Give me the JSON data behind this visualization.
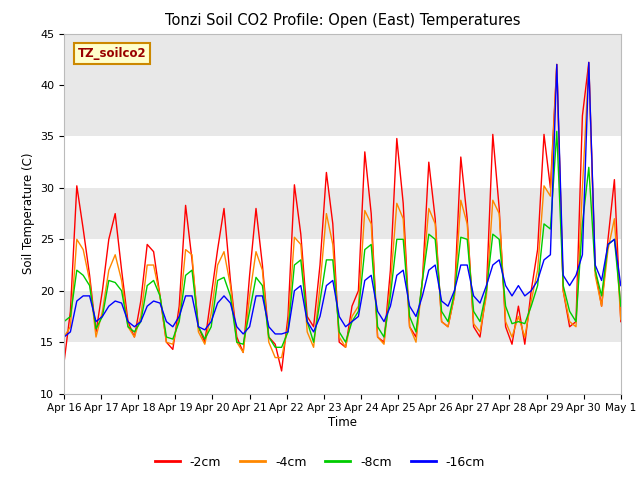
{
  "title": "Tonzi Soil CO2 Profile: Open (East) Temperatures",
  "ylabel": "Soil Temperature (C)",
  "xlabel": "Time",
  "watermark": "TZ_soilco2",
  "ylim": [
    10,
    45
  ],
  "xtick_labels": [
    "Apr 16",
    "Apr 17",
    "Apr 18",
    "Apr 19",
    "Apr 20",
    "Apr 21",
    "Apr 22",
    "Apr 23",
    "Apr 24",
    "Apr 25",
    "Apr 26",
    "Apr 27",
    "Apr 28",
    "Apr 29",
    "Apr 30",
    "May 1"
  ],
  "legend_labels": [
    "-2cm",
    "-4cm",
    "-8cm",
    "-16cm"
  ],
  "legend_colors": [
    "#ff0000",
    "#ff8800",
    "#00cc00",
    "#0000ff"
  ],
  "background_color": "#ffffff",
  "plot_bg_color": "#ffffff",
  "band_color": "#e8e8e8",
  "series": {
    "2cm": [
      13.0,
      18.0,
      30.2,
      26.0,
      21.5,
      16.0,
      20.0,
      25.0,
      27.5,
      22.0,
      17.0,
      15.5,
      19.0,
      24.5,
      23.8,
      19.5,
      15.0,
      14.3,
      18.5,
      28.3,
      23.0,
      16.5,
      15.0,
      19.5,
      24.0,
      28.0,
      21.0,
      15.5,
      14.0,
      21.5,
      28.0,
      22.5,
      15.5,
      14.8,
      12.2,
      17.5,
      30.3,
      25.5,
      17.5,
      16.5,
      22.5,
      31.5,
      26.5,
      15.0,
      14.5,
      18.5,
      20.0,
      33.5,
      27.5,
      15.5,
      15.0,
      22.0,
      34.8,
      28.5,
      16.5,
      15.5,
      21.0,
      32.5,
      27.0,
      17.0,
      16.5,
      19.5,
      33.0,
      27.0,
      16.5,
      15.5,
      20.0,
      35.2,
      28.0,
      16.5,
      14.8,
      18.5,
      14.8,
      20.0,
      24.0,
      35.2,
      30.0,
      42.0,
      20.0,
      16.5,
      17.0,
      37.0,
      42.2,
      22.0,
      18.5,
      25.0,
      30.8,
      17.0
    ],
    "4cm": [
      15.5,
      16.5,
      25.0,
      24.0,
      21.0,
      15.5,
      18.0,
      22.0,
      23.5,
      21.0,
      16.5,
      15.5,
      17.5,
      22.5,
      22.5,
      19.5,
      15.0,
      14.8,
      17.5,
      24.0,
      23.5,
      16.0,
      14.8,
      17.8,
      22.5,
      23.8,
      20.5,
      15.0,
      14.0,
      19.5,
      23.8,
      22.0,
      15.0,
      13.5,
      13.5,
      16.5,
      25.2,
      24.5,
      16.0,
      14.5,
      20.5,
      27.5,
      24.5,
      15.5,
      14.5,
      17.5,
      18.5,
      27.8,
      26.5,
      15.5,
      14.8,
      20.5,
      28.5,
      27.0,
      16.5,
      15.0,
      21.0,
      28.0,
      26.5,
      17.0,
      16.5,
      19.5,
      28.8,
      26.5,
      16.8,
      16.0,
      19.5,
      28.8,
      27.5,
      17.0,
      15.5,
      17.5,
      15.5,
      19.0,
      22.0,
      30.2,
      29.2,
      42.0,
      20.0,
      17.0,
      16.5,
      30.0,
      42.0,
      21.5,
      18.5,
      24.0,
      27.0,
      17.2
    ],
    "8cm": [
      17.0,
      17.5,
      22.0,
      21.5,
      20.5,
      16.3,
      17.5,
      21.0,
      20.8,
      20.0,
      16.5,
      16.0,
      17.0,
      20.5,
      21.0,
      19.5,
      15.5,
      15.3,
      17.0,
      21.5,
      22.0,
      16.5,
      15.3,
      16.5,
      21.0,
      21.3,
      19.5,
      15.0,
      14.8,
      18.0,
      21.3,
      20.5,
      15.5,
      14.5,
      14.5,
      16.0,
      22.5,
      23.0,
      17.0,
      15.0,
      19.0,
      23.0,
      23.0,
      16.0,
      15.0,
      17.0,
      18.0,
      24.0,
      24.5,
      16.5,
      15.5,
      19.5,
      25.0,
      25.0,
      17.5,
      16.0,
      21.0,
      25.5,
      25.0,
      18.0,
      17.0,
      19.8,
      25.2,
      25.0,
      18.0,
      17.0,
      20.0,
      25.5,
      25.0,
      18.5,
      16.8,
      17.0,
      16.8,
      18.5,
      20.5,
      26.5,
      26.0,
      35.5,
      20.5,
      18.0,
      17.0,
      26.5,
      32.0,
      22.0,
      19.5,
      24.5,
      25.0,
      18.5
    ],
    "16cm": [
      15.5,
      16.0,
      19.0,
      19.5,
      19.5,
      17.0,
      17.5,
      18.5,
      19.0,
      18.8,
      17.0,
      16.5,
      17.0,
      18.5,
      19.0,
      18.8,
      17.0,
      16.5,
      17.5,
      19.5,
      19.5,
      16.5,
      16.2,
      17.0,
      18.8,
      19.5,
      18.8,
      16.5,
      15.8,
      16.5,
      19.5,
      19.5,
      16.5,
      15.8,
      15.8,
      16.0,
      20.0,
      20.5,
      17.0,
      16.0,
      17.5,
      20.5,
      21.0,
      17.5,
      16.5,
      17.0,
      17.5,
      21.0,
      21.5,
      18.0,
      17.0,
      18.5,
      21.5,
      22.0,
      18.5,
      17.5,
      19.5,
      22.0,
      22.5,
      19.0,
      18.5,
      20.0,
      22.5,
      22.5,
      19.5,
      18.8,
      20.5,
      22.5,
      23.0,
      20.5,
      19.5,
      20.5,
      19.5,
      20.0,
      21.0,
      23.0,
      23.5,
      42.0,
      21.5,
      20.5,
      21.5,
      23.5,
      42.2,
      22.5,
      21.0,
      24.5,
      25.0,
      20.5
    ]
  }
}
